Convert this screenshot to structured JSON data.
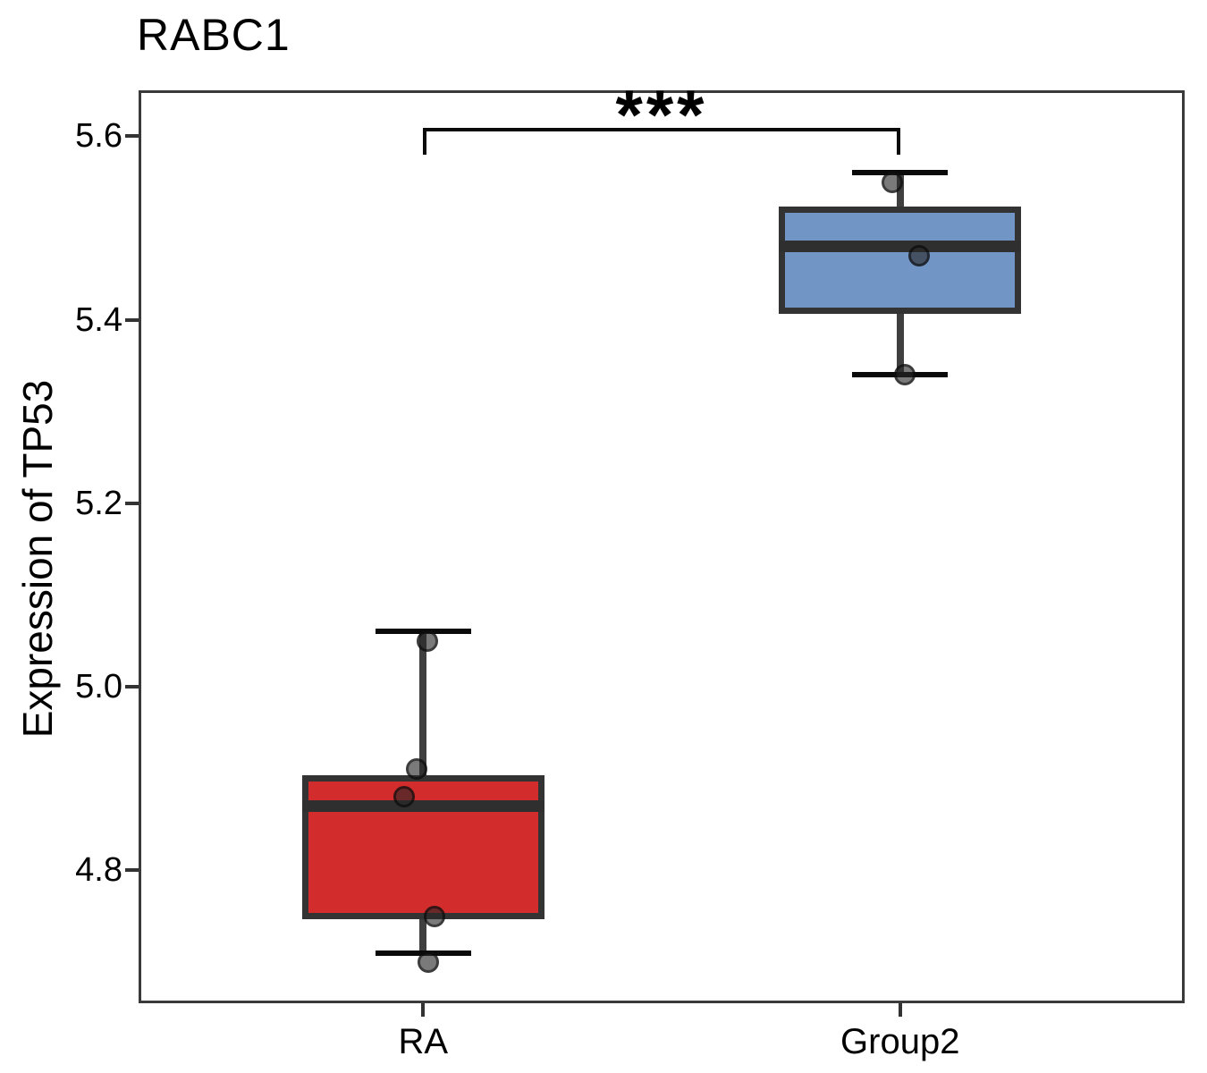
{
  "chart_data": {
    "type": "box",
    "title": "RABC1",
    "ylabel": "Expression of TP53",
    "xlabel": "",
    "categories": [
      "RA",
      "Group2"
    ],
    "yticks": [
      5.6,
      5.4,
      5.2,
      5.0,
      4.8
    ],
    "ylim": [
      4.655,
      5.65
    ],
    "grid": false,
    "legend": "none",
    "groups": [
      {
        "name": "RA",
        "fill_color": "#D22C2C",
        "whisker_low": 4.71,
        "q1": 4.75,
        "median": 4.87,
        "q3": 4.9,
        "whisker_high": 5.06,
        "points": [
          {
            "value": 5.05,
            "offset": 5
          },
          {
            "value": 4.91,
            "offset": -7
          },
          {
            "value": 4.88,
            "offset": -21
          },
          {
            "value": 4.75,
            "offset": 13
          },
          {
            "value": 4.7,
            "offset": 6
          }
        ]
      },
      {
        "name": "Group2",
        "fill_color": "#7195C4",
        "whisker_low": 5.34,
        "q1": 5.41,
        "median": 5.48,
        "q3": 5.52,
        "whisker_high": 5.56,
        "points": [
          {
            "value": 5.55,
            "offset": -9
          },
          {
            "value": 5.47,
            "offset": 21
          },
          {
            "value": 5.34,
            "offset": 5
          }
        ]
      }
    ],
    "significance": {
      "label": "***",
      "between": [
        "RA",
        "Group2"
      ],
      "bar_value": 5.607,
      "tick_drop": 0.027
    },
    "style_colors": {
      "box_border": "#333333",
      "median": "#2F2F2F",
      "whisker_stem": "#3F3F3F",
      "whisker_cap": "#0A0A0A",
      "panel_border": "#3A3A3A",
      "text": "#000000"
    }
  }
}
